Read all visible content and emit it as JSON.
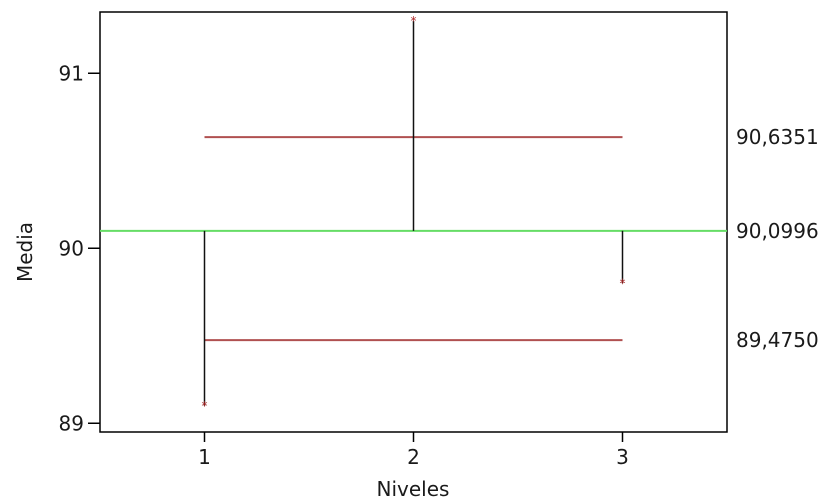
{
  "chart_data": {
    "type": "scatter",
    "title": "",
    "xlabel": "Niveles",
    "ylabel": "Media",
    "x_categories": [
      "1",
      "2",
      "3"
    ],
    "xlim": [
      0.5,
      3.5
    ],
    "ylim": [
      88.95,
      91.35
    ],
    "y_ticks": [
      "89",
      "90",
      "91"
    ],
    "center_line": {
      "value": 90.0996,
      "label": "90,0996"
    },
    "upper_limit": {
      "value": 90.6351,
      "label": "90,6351"
    },
    "lower_limit": {
      "value": 89.475,
      "label": "89,4750"
    },
    "points": [
      {
        "x": 1,
        "y": 89.1
      },
      {
        "x": 2,
        "y": 91.3
      },
      {
        "x": 3,
        "y": 89.8
      }
    ],
    "colors": {
      "center_line": "#66dd66",
      "limit_lines": "#b05050",
      "markers": "#aa2222",
      "stems": "#111111",
      "frame": "#000000"
    }
  }
}
